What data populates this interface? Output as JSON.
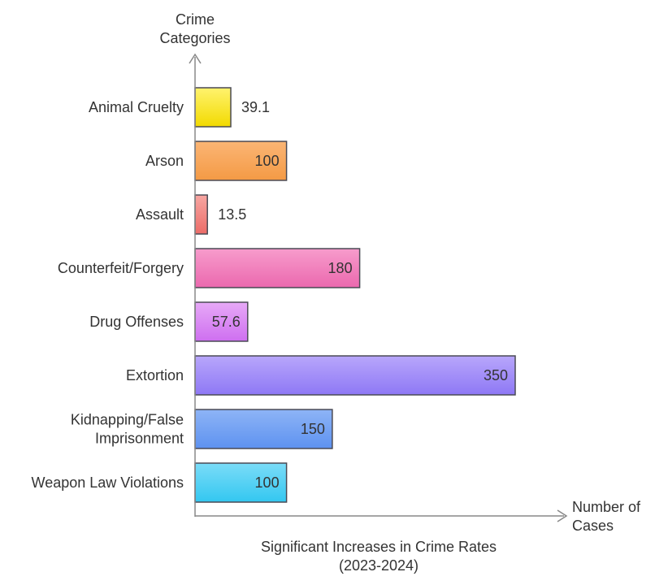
{
  "chart_data": {
    "type": "bar",
    "orientation": "horizontal",
    "title": "Significant Increases in Crime Rates (2023-2024)",
    "ylabel": "Crime Categories",
    "xlabel": "Number of Cases",
    "xlim": [
      0,
      350
    ],
    "grid": false,
    "categories": [
      "Animal Cruelty",
      "Arson",
      "Assault",
      "Counterfeit/Forgery",
      "Drug Offenses",
      "Extortion",
      "Kidnapping/False Imprisonment",
      "Weapon Law Violations"
    ],
    "values": [
      39.1,
      100,
      13.5,
      180,
      57.6,
      350,
      150,
      100
    ],
    "colors": [
      [
        "#FFF36E",
        "#F2DA00"
      ],
      [
        "#FBB575",
        "#F49A45"
      ],
      [
        "#F7A6A2",
        "#EC6C68"
      ],
      [
        "#F79CCC",
        "#EB68AE"
      ],
      [
        "#E7A9F7",
        "#CE6FF0"
      ],
      [
        "#B8A6FB",
        "#8E78F5"
      ],
      [
        "#8EB4F6",
        "#5E92F0"
      ],
      [
        "#7BDCF8",
        "#33C7F0"
      ]
    ]
  }
}
